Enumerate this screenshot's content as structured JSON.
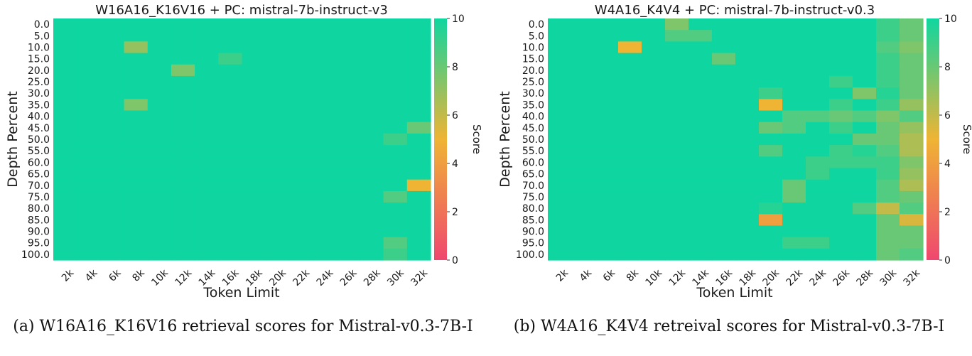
{
  "chart_data": [
    {
      "type": "heatmap",
      "title": "W16A16_K16V16 + PC: mistral-7b-instruct-v3",
      "xlabel": "Token Limit",
      "ylabel": "Depth Percent",
      "x": [
        "2k",
        "4k",
        "6k",
        "8k",
        "10k",
        "12k",
        "14k",
        "16k",
        "18k",
        "20k",
        "22k",
        "24k",
        "26k",
        "28k",
        "30k",
        "32k"
      ],
      "y": [
        "0.0",
        "5.0",
        "10.0",
        "15.0",
        "20.0",
        "25.0",
        "30.0",
        "35.0",
        "40.0",
        "45.0",
        "50.0",
        "55.0",
        "60.0",
        "65.0",
        "70.0",
        "75.0",
        "80.0",
        "85.0",
        "90.0",
        "95.0",
        "100.0"
      ],
      "values": [
        [
          10,
          10,
          10,
          10,
          10,
          10,
          10,
          10,
          10,
          10,
          10,
          10,
          10,
          10,
          10,
          10
        ],
        [
          10,
          10,
          10,
          10,
          10,
          10,
          10,
          10,
          10,
          10,
          10,
          10,
          10,
          10,
          10,
          10
        ],
        [
          10,
          10,
          10,
          7,
          10,
          10,
          10,
          10,
          10,
          10,
          10,
          10,
          10,
          10,
          10,
          10
        ],
        [
          10,
          10,
          10,
          10,
          10,
          10,
          10,
          9,
          10,
          10,
          10,
          10,
          10,
          10,
          10,
          10
        ],
        [
          10,
          10,
          10,
          10,
          10,
          7.5,
          10,
          10,
          10,
          10,
          10,
          10,
          10,
          10,
          10,
          10
        ],
        [
          10,
          10,
          10,
          10,
          10,
          10,
          10,
          10,
          10,
          10,
          10,
          10,
          10,
          10,
          10,
          10
        ],
        [
          10,
          10,
          10,
          10,
          10,
          10,
          10,
          10,
          10,
          10,
          10,
          10,
          10,
          10,
          10,
          10
        ],
        [
          10,
          10,
          10,
          7.5,
          10,
          10,
          10,
          10,
          10,
          10,
          10,
          10,
          10,
          10,
          10,
          10
        ],
        [
          10,
          10,
          10,
          10,
          10,
          10,
          10,
          10,
          10,
          10,
          10,
          10,
          10,
          10,
          10,
          10
        ],
        [
          10,
          10,
          10,
          10,
          10,
          10,
          10,
          10,
          10,
          10,
          10,
          10,
          10,
          10,
          10,
          8
        ],
        [
          10,
          10,
          10,
          10,
          10,
          10,
          10,
          10,
          10,
          10,
          10,
          10,
          10,
          10,
          9,
          10
        ],
        [
          10,
          10,
          10,
          10,
          10,
          10,
          10,
          10,
          10,
          10,
          10,
          10,
          10,
          10,
          10,
          10
        ],
        [
          10,
          10,
          10,
          10,
          10,
          10,
          10,
          10,
          10,
          10,
          10,
          10,
          10,
          10,
          10,
          10
        ],
        [
          10,
          10,
          10,
          10,
          10,
          10,
          10,
          10,
          10,
          10,
          10,
          10,
          10,
          10,
          10,
          10
        ],
        [
          10,
          10,
          10,
          10,
          10,
          10,
          10,
          10,
          10,
          10,
          10,
          10,
          10,
          10,
          10,
          5
        ],
        [
          10,
          10,
          10,
          10,
          10,
          10,
          10,
          10,
          10,
          10,
          10,
          10,
          10,
          10,
          8.5,
          10
        ],
        [
          10,
          10,
          10,
          10,
          10,
          10,
          10,
          10,
          10,
          10,
          10,
          10,
          10,
          10,
          10,
          10
        ],
        [
          10,
          10,
          10,
          10,
          10,
          10,
          10,
          10,
          10,
          10,
          10,
          10,
          10,
          10,
          10,
          10
        ],
        [
          10,
          10,
          10,
          10,
          10,
          10,
          10,
          10,
          10,
          10,
          10,
          10,
          10,
          10,
          10,
          10
        ],
        [
          10,
          10,
          10,
          10,
          10,
          10,
          10,
          10,
          10,
          10,
          10,
          10,
          10,
          10,
          8.5,
          10
        ],
        [
          10,
          10,
          10,
          10,
          10,
          10,
          10,
          10,
          10,
          10,
          10,
          10,
          10,
          10,
          9,
          10
        ]
      ],
      "colorbar": {
        "label": "Score",
        "range": [
          0,
          10
        ],
        "ticks": [
          "0",
          "2",
          "4",
          "6",
          "8",
          "10"
        ]
      }
    },
    {
      "type": "heatmap",
      "title": "W4A16_K4V4 + PC: mistral-7b-instruct-v0.3",
      "xlabel": "Token Limit",
      "ylabel": "Depth Percent",
      "x": [
        "2k",
        "4k",
        "6k",
        "8k",
        "10k",
        "12k",
        "14k",
        "16k",
        "18k",
        "20k",
        "22k",
        "24k",
        "26k",
        "28k",
        "30k",
        "32k"
      ],
      "y": [
        "0.0",
        "5.0",
        "10.0",
        "15.0",
        "20.0",
        "25.0",
        "30.0",
        "35.0",
        "40.0",
        "45.0",
        "50.0",
        "55.0",
        "60.0",
        "65.0",
        "70.0",
        "75.0",
        "80.0",
        "85.0",
        "90.0",
        "95.0",
        "100.0"
      ],
      "values": [
        [
          10,
          10,
          10,
          10,
          10,
          7.5,
          10,
          10,
          10,
          10,
          10,
          10,
          10,
          10,
          9,
          8
        ],
        [
          10,
          10,
          10,
          10,
          10,
          8.5,
          8.5,
          10,
          10,
          10,
          10,
          10,
          10,
          10,
          9,
          8
        ],
        [
          10,
          10,
          10,
          5,
          10,
          10,
          10,
          10,
          10,
          10,
          10,
          10,
          10,
          10,
          8.5,
          7.5
        ],
        [
          10,
          10,
          10,
          10,
          10,
          10,
          10,
          8,
          10,
          10,
          10,
          10,
          10,
          10,
          9,
          8
        ],
        [
          10,
          10,
          10,
          10,
          10,
          10,
          10,
          10,
          10,
          10,
          10,
          10,
          10,
          10,
          9,
          8
        ],
        [
          10,
          10,
          10,
          10,
          10,
          10,
          10,
          10,
          10,
          10,
          10,
          10,
          9,
          10,
          9,
          8
        ],
        [
          10,
          10,
          10,
          10,
          10,
          10,
          10,
          10,
          10,
          9,
          10,
          10,
          10,
          7.5,
          9.5,
          8
        ],
        [
          10,
          10,
          10,
          10,
          10,
          10,
          10,
          10,
          10,
          5,
          10,
          10,
          9,
          10,
          9,
          7
        ],
        [
          10,
          10,
          10,
          10,
          10,
          10,
          10,
          10,
          10,
          10,
          8.5,
          8.5,
          8,
          8.5,
          7.5,
          8.5
        ],
        [
          10,
          10,
          10,
          10,
          10,
          10,
          10,
          10,
          10,
          8,
          8.5,
          10,
          9,
          10,
          8,
          7
        ],
        [
          10,
          10,
          10,
          10,
          10,
          10,
          10,
          10,
          10,
          10,
          10,
          10,
          10,
          8,
          8,
          6.5
        ],
        [
          10,
          10,
          10,
          10,
          10,
          10,
          10,
          10,
          10,
          8.5,
          10,
          10,
          9,
          9.5,
          8.5,
          6.5
        ],
        [
          10,
          10,
          10,
          10,
          10,
          10,
          10,
          10,
          10,
          10,
          10,
          9,
          9,
          9,
          9,
          7.5
        ],
        [
          10,
          10,
          10,
          10,
          10,
          10,
          10,
          10,
          10,
          10,
          10,
          9,
          10,
          10,
          9,
          7
        ],
        [
          10,
          10,
          10,
          10,
          10,
          10,
          10,
          10,
          10,
          10,
          8,
          10,
          10,
          10,
          8.5,
          6.5
        ],
        [
          10,
          10,
          10,
          10,
          10,
          10,
          10,
          10,
          10,
          10,
          8,
          10,
          10,
          10,
          8.5,
          8
        ],
        [
          10,
          10,
          10,
          10,
          10,
          10,
          10,
          10,
          10,
          9.5,
          10,
          10,
          10,
          8.5,
          6,
          8.5
        ],
        [
          10,
          10,
          10,
          10,
          10,
          10,
          10,
          10,
          10,
          4,
          10,
          10,
          10,
          10,
          8,
          5.5
        ],
        [
          10,
          10,
          10,
          10,
          10,
          10,
          10,
          10,
          10,
          10,
          10,
          10,
          10,
          10,
          8,
          8
        ],
        [
          10,
          10,
          10,
          10,
          10,
          10,
          10,
          10,
          10,
          10,
          9,
          9,
          10,
          10,
          8,
          8
        ],
        [
          10,
          10,
          10,
          10,
          10,
          10,
          10,
          10,
          10,
          10,
          10,
          10,
          10,
          10,
          8,
          8.5
        ]
      ],
      "colorbar": {
        "label": "Score",
        "range": [
          0,
          10
        ],
        "ticks": [
          "0",
          "2",
          "4",
          "6",
          "8",
          "10"
        ]
      }
    }
  ],
  "colors": {
    "low": "#ef476f",
    "mid": "#efb434",
    "high": "#0fd6a0"
  },
  "captions": {
    "a": "(a) W16A16_K16V16 retrieval scores for Mistral-v0.3-7B-I",
    "b": "(b) W4A16_K4V4 retreival scores for Mistral-v0.3-7B-I"
  }
}
